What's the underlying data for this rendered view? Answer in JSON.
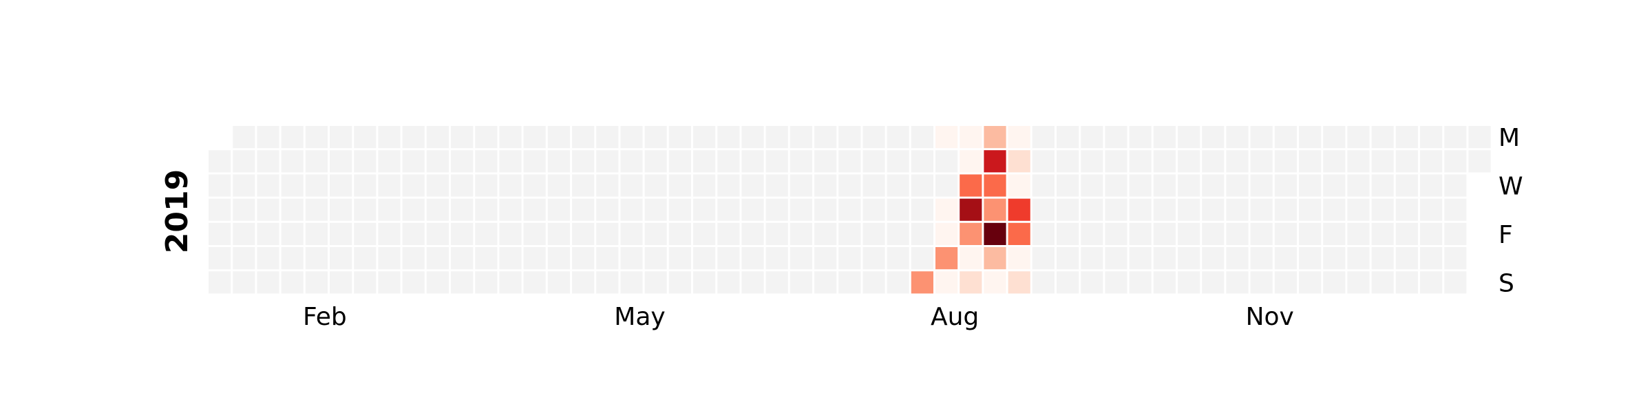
{
  "chart_data": {
    "type": "heatmap",
    "title": "",
    "year": "2019",
    "first_day_offset": 1,
    "num_days": 365,
    "month_labels": [
      {
        "label": "Feb",
        "day": 31
      },
      {
        "label": "May",
        "day": 120
      },
      {
        "label": "Aug",
        "day": 212
      },
      {
        "label": "Nov",
        "day": 304
      }
    ],
    "day_labels": [
      {
        "label": "M",
        "row": 0
      },
      {
        "label": "W",
        "row": 2
      },
      {
        "label": "F",
        "row": 4
      },
      {
        "label": "S",
        "row": 6
      }
    ],
    "colors": {
      "empty": "#f3f3f3",
      "grid": "#ffffff",
      "scale": [
        "#fff5f0",
        "#fee0d2",
        "#fcbba1",
        "#fc9272",
        "#fb6a4a",
        "#ef3b2c",
        "#cb181d",
        "#a50f15",
        "#67000d"
      ]
    },
    "value_range": [
      0,
      10
    ],
    "active_days": [
      {
        "date": "2019-07-28",
        "value": 4
      },
      {
        "date": "2019-07-29",
        "value": 0.3
      },
      {
        "date": "2019-08-01",
        "value": 0.3
      },
      {
        "date": "2019-08-02",
        "value": 0.3
      },
      {
        "date": "2019-08-03",
        "value": 4
      },
      {
        "date": "2019-08-04",
        "value": 0.5
      },
      {
        "date": "2019-08-05",
        "value": 0.3
      },
      {
        "date": "2019-08-06",
        "value": 0.3
      },
      {
        "date": "2019-08-07",
        "value": 5
      },
      {
        "date": "2019-08-08",
        "value": 9
      },
      {
        "date": "2019-08-09",
        "value": 4
      },
      {
        "date": "2019-08-10",
        "value": 0.3
      },
      {
        "date": "2019-08-11",
        "value": 1.5
      },
      {
        "date": "2019-08-12",
        "value": 2.5
      },
      {
        "date": "2019-08-13",
        "value": 7
      },
      {
        "date": "2019-08-14",
        "value": 5
      },
      {
        "date": "2019-08-15",
        "value": 4
      },
      {
        "date": "2019-08-16",
        "value": 10
      },
      {
        "date": "2019-08-17",
        "value": 2.5
      },
      {
        "date": "2019-08-18",
        "value": 0.3
      },
      {
        "date": "2019-08-19",
        "value": 0.3
      },
      {
        "date": "2019-08-20",
        "value": 1.2
      },
      {
        "date": "2019-08-21",
        "value": 0.5
      },
      {
        "date": "2019-08-22",
        "value": 6
      },
      {
        "date": "2019-08-23",
        "value": 5
      },
      {
        "date": "2019-08-24",
        "value": 0.3
      },
      {
        "date": "2019-08-25",
        "value": 1.2
      }
    ]
  }
}
